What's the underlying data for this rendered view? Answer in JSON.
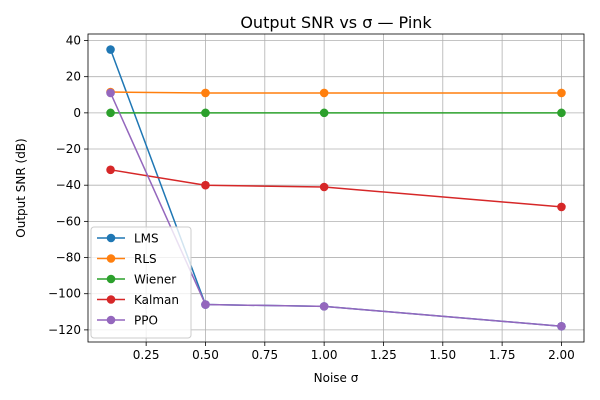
{
  "chart_data": {
    "type": "line",
    "title": "Output SNR vs σ  —  Pink",
    "xlabel": "Noise σ",
    "ylabel": "Output SNR (dB)",
    "x": [
      0.1,
      0.5,
      1.0,
      2.0
    ],
    "xlim": [
      0.005,
      2.095
    ],
    "ylim": [
      -126.7,
      43.6
    ],
    "xticks": [
      0.25,
      0.5,
      0.75,
      1.0,
      1.25,
      1.5,
      1.75,
      2.0
    ],
    "xtick_labels": [
      "0.25",
      "0.50",
      "0.75",
      "1.00",
      "1.25",
      "1.50",
      "1.75",
      "2.00"
    ],
    "yticks": [
      40,
      20,
      0,
      -20,
      -40,
      -60,
      -80,
      -100,
      -120
    ],
    "ytick_labels": [
      "40",
      "20",
      "0",
      "−20",
      "−40",
      "−60",
      "−80",
      "−100",
      "−120"
    ],
    "grid": true,
    "legend_position": "lower-left",
    "series": [
      {
        "name": "LMS",
        "color": "#1f77b4",
        "values": [
          35,
          -106,
          -107,
          -118
        ]
      },
      {
        "name": "RLS",
        "color": "#ff7f0e",
        "values": [
          11.5,
          11,
          11,
          11
        ]
      },
      {
        "name": "Wiener",
        "color": "#2ca02c",
        "values": [
          0,
          0,
          0,
          0
        ]
      },
      {
        "name": "Kalman",
        "color": "#d62728",
        "values": [
          -31.5,
          -40,
          -41,
          -52
        ]
      },
      {
        "name": "PPO",
        "color": "#9467bd",
        "values": [
          11,
          -106,
          -107,
          -118
        ]
      }
    ]
  }
}
